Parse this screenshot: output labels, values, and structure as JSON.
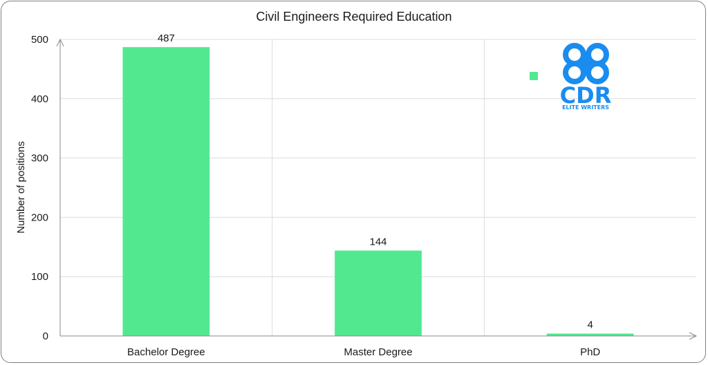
{
  "chart_data": {
    "type": "bar",
    "title": "Civil Engineers Required Education",
    "categories": [
      "Bachelor Degree",
      "Master Degree",
      "PhD"
    ],
    "values": [
      487,
      144,
      4
    ],
    "xlabel": "",
    "ylabel": "Number of positions",
    "ylim": [
      0,
      500
    ],
    "yticks": [
      0,
      100,
      200,
      300,
      400,
      500
    ],
    "grid": true,
    "legend_placement": "top-right",
    "bar_color": "#52e890"
  },
  "logo": {
    "mark": "CDR",
    "tagline": "ELITE WRITERS",
    "color": "#1a8cf0"
  }
}
